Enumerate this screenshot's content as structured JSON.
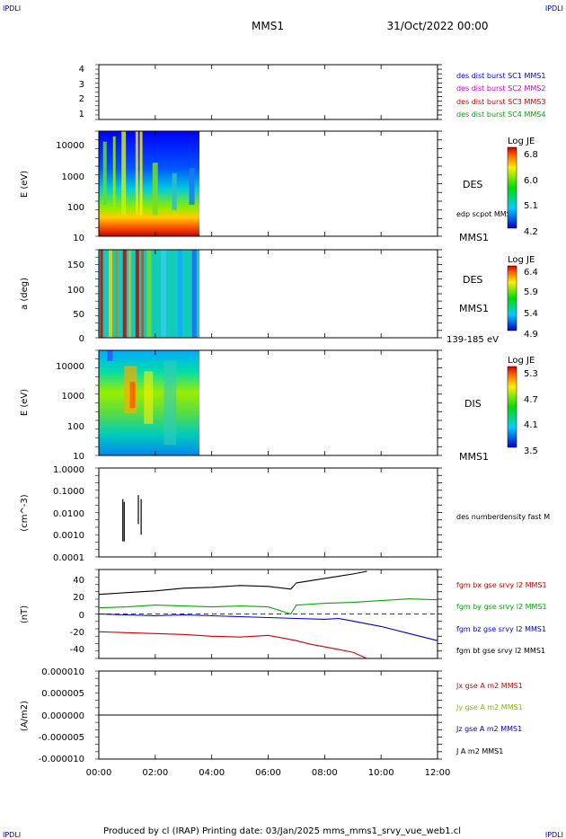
{
  "corners": {
    "tl": "IPDLI",
    "tr": "IPDLI",
    "bl": "IPDLI",
    "br": "IPDLI"
  },
  "header": {
    "mission": "MMS1",
    "date": "31/Oct/2022 00:00"
  },
  "footer": "Produced by cl (IRAP)   Printing date: 03/Jan/2025   mms_mms1_srvy_vue_web1.cl",
  "time_axis": {
    "range_hours": [
      0,
      12
    ],
    "ticks": [
      {
        "h": 0,
        "label": "00:00"
      },
      {
        "h": 2,
        "label": "02:00"
      },
      {
        "h": 4,
        "label": "04:00"
      },
      {
        "h": 6,
        "label": "06:00"
      },
      {
        "h": 8,
        "label": "08:00"
      },
      {
        "h": 10,
        "label": "10:00"
      },
      {
        "h": 12,
        "label": "12:00"
      }
    ]
  },
  "panels": {
    "p1": {
      "yticks": [
        "4",
        "3",
        "2",
        "1"
      ],
      "legend": [
        {
          "text": "des dist burst SC1 MMS1",
          "color": "#0000cc"
        },
        {
          "text": "des dist burst SC2 MMS2",
          "color": "#cc00cc"
        },
        {
          "text": "des dist burst SC3 MMS3",
          "color": "#cc0000"
        },
        {
          "text": "des dist burst SC4 MMS4",
          "color": "#00aa00"
        }
      ]
    },
    "p2": {
      "ylabel": "E (eV)",
      "yticks": [
        "10000",
        "1000",
        "100",
        "10"
      ],
      "instrument": "DES",
      "extra": "edp scpot MMS1",
      "mission": "MMS1",
      "colorbar": {
        "title": "Log JE",
        "ticks": [
          "6.8",
          "6.0",
          "5.1",
          "4.2"
        ]
      }
    },
    "p3": {
      "ylabel": "a (deg)",
      "yticks": [
        "150",
        "100",
        "50",
        "0"
      ],
      "instrument": "DES",
      "mission": "MMS1",
      "extra": "139-185 eV",
      "colorbar": {
        "title": "Log JE",
        "ticks": [
          "6.4",
          "5.9",
          "5.4",
          "4.9"
        ]
      }
    },
    "p4": {
      "ylabel": "E (eV)",
      "yticks": [
        "10000",
        "1000",
        "100",
        "10"
      ],
      "instrument": "DIS",
      "mission": "MMS1",
      "colorbar": {
        "title": "Log JE",
        "ticks": [
          "5.3",
          "4.7",
          "4.1",
          "3.5"
        ]
      }
    },
    "p5": {
      "ylabel": "(cm^-3)",
      "yticks": [
        "1.0000",
        "0.1000",
        "0.0100",
        "0.0010",
        "0.0001"
      ],
      "legend": [
        {
          "text": "des numberdensity fast M",
          "color": "#000000"
        }
      ]
    },
    "p6": {
      "ylabel": "(nT)",
      "yticks": [
        "40",
        "20",
        "0",
        "-20",
        "-40"
      ],
      "legend": [
        {
          "text": "fgm bx gse srvy l2 MMS1",
          "color": "#cc0000"
        },
        {
          "text": "fgm by gse srvy l2 MMS1",
          "color": "#00aa00"
        },
        {
          "text": "fgm bz gse srvy l2 MMS1",
          "color": "#0000cc"
        },
        {
          "text": "fgm bt gse srvy l2 MMS1",
          "color": "#000000"
        }
      ]
    },
    "p7": {
      "ylabel": "(A/m2)",
      "yticks": [
        "0.000010",
        "0.000005",
        "0.000000",
        "-0.000005",
        "-0.000010"
      ],
      "legend": [
        {
          "text": "Jx gse A m2 MMS1",
          "color": "#cc0000"
        },
        {
          "text": "Jy gse A m2 MMS1",
          "color": "#88bb00"
        },
        {
          "text": "Jz gse A m2 MMS1",
          "color": "#0000cc"
        },
        {
          "text": "J A m2 MMS1",
          "color": "#000000"
        }
      ]
    }
  },
  "chart_data": {
    "type": "line",
    "x_unit": "hours since 00:00",
    "magnetic_field": {
      "ylim": [
        -50,
        50
      ],
      "series": [
        {
          "name": "fgm bx gse srvy l2 MMS1",
          "color": "#cc0000",
          "x": [
            0,
            1,
            2,
            3,
            4,
            5,
            5.5,
            6,
            6.5,
            7,
            7.5,
            8,
            8.5,
            9,
            9.5
          ],
          "y": [
            -20,
            -21,
            -22,
            -23,
            -25,
            -26,
            -25,
            -24,
            -27,
            -30,
            -34,
            -37,
            -40,
            -43,
            -50
          ]
        },
        {
          "name": "fgm by gse srvy l2 MMS1",
          "color": "#00aa00",
          "x": [
            0,
            1,
            2,
            3,
            4,
            5,
            6,
            6.8,
            7,
            8,
            9,
            10,
            11,
            12
          ],
          "y": [
            7,
            8,
            10,
            9,
            8,
            9,
            8,
            0,
            10,
            12,
            13,
            15,
            17,
            16
          ]
        },
        {
          "name": "fgm bz gse srvy l2 MMS1",
          "color": "#0000cc",
          "x": [
            0,
            1,
            2,
            3,
            4,
            5,
            6,
            7,
            8,
            8.5,
            9,
            10,
            11,
            12
          ],
          "y": [
            0,
            -1,
            -2,
            -1,
            -2,
            -3,
            -4,
            -5,
            -6,
            -5,
            -8,
            -14,
            -22,
            -30
          ]
        },
        {
          "name": "fgm bt gse srvy l2 MMS1",
          "color": "#000000",
          "x": [
            0,
            1,
            2,
            3,
            4,
            5,
            6,
            6.8,
            7,
            8,
            9,
            9.5
          ],
          "y": [
            22,
            24,
            26,
            29,
            30,
            32,
            31,
            28,
            35,
            40,
            45,
            48
          ]
        }
      ]
    },
    "density": {
      "ylim": [
        0.0001,
        1.0
      ],
      "x": [
        0.85,
        0.9,
        1.4,
        1.5
      ],
      "y_min": [
        0.0005,
        0.0005,
        0.003,
        0.001
      ],
      "y_max": [
        0.04,
        0.03,
        0.06,
        0.04
      ]
    },
    "current": {
      "ylim": [
        -1e-05,
        1e-05
      ],
      "series": [
        {
          "name": "J A m2 MMS1",
          "color": "#000000",
          "x": [
            0,
            12
          ],
          "y": [
            0,
            0
          ]
        }
      ]
    },
    "spectrogram_coverage_hours": [
      0,
      3.6
    ]
  }
}
